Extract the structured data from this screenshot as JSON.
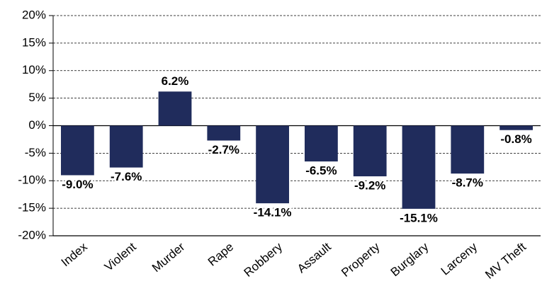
{
  "chart_data": {
    "type": "bar",
    "categories": [
      "Index",
      "Violent",
      "Murder",
      "Rape",
      "Robbery",
      "Assault",
      "Property",
      "Burglary",
      "Larceny",
      "MV Theft"
    ],
    "values": [
      -9.0,
      -7.6,
      6.2,
      -2.7,
      -14.1,
      -6.5,
      -9.2,
      -15.1,
      -8.7,
      -0.8
    ],
    "value_labels": [
      "-9.0%",
      "-7.6%",
      "6.2%",
      "-2.7%",
      "-14.1%",
      "-6.5%",
      "-9.2%",
      "-15.1%",
      "-8.7%",
      "-0.8%"
    ],
    "color": "#202c5c",
    "ylim": [
      -20,
      20
    ],
    "yticks": [
      {
        "value": -20,
        "label": "-20%"
      },
      {
        "value": -15,
        "label": "-15%"
      },
      {
        "value": -10,
        "label": "-10%"
      },
      {
        "value": -5,
        "label": "-5%"
      },
      {
        "value": 0,
        "label": "0%"
      },
      {
        "value": 5,
        "label": "5%"
      },
      {
        "value": 10,
        "label": "10%"
      },
      {
        "value": 15,
        "label": "15%"
      },
      {
        "value": 20,
        "label": "20%"
      }
    ],
    "grid": true
  }
}
